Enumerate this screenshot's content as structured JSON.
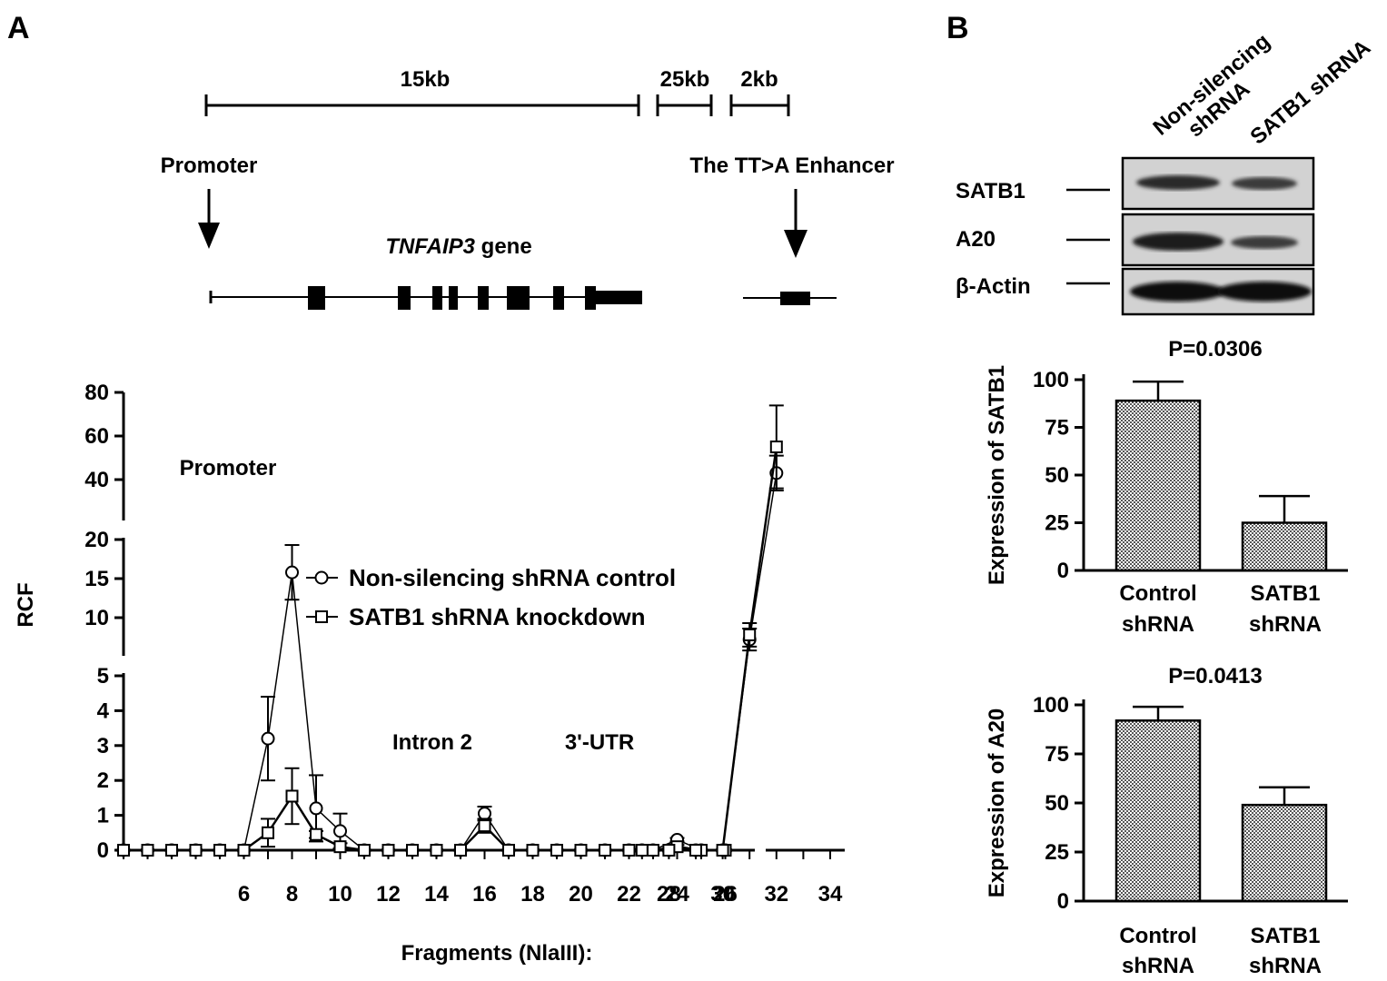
{
  "panel_a": {
    "label": "A",
    "scale_labels": [
      "15kb",
      "25kb",
      "2kb"
    ],
    "promoter_label": "Promoter",
    "enhancer_label": "The TT>A Enhancer",
    "gene_italic": "TNFAIP3",
    "gene_suffix": " gene"
  },
  "panel_b": {
    "label": "B",
    "lane_labels": [
      [
        "Non-silencing",
        "shRNA"
      ],
      [
        "SATB1 shRNA"
      ]
    ],
    "bands": [
      "SATB1",
      "A20",
      "β-Actin"
    ]
  },
  "chart_data": [
    {
      "type": "line",
      "xlabel": "Fragments (NlaIII):",
      "ylabel": "RCF",
      "x_ticks": [
        6,
        8,
        10,
        12,
        14,
        16,
        18,
        20,
        22,
        24,
        26,
        28,
        30,
        32,
        34
      ],
      "y_ticks_bottom": [
        0,
        1,
        2,
        3,
        4,
        5
      ],
      "y_ticks_middle": [
        10,
        15,
        20
      ],
      "y_ticks_top": [
        40,
        60,
        80
      ],
      "annotations": [
        "Promoter",
        "Intron 2",
        "3'-UTR"
      ],
      "x": [
        1,
        2,
        3,
        4,
        5,
        6,
        7,
        8,
        9,
        10,
        11,
        12,
        13,
        14,
        15,
        16,
        17,
        18,
        19,
        20,
        21,
        22,
        23,
        24,
        25,
        26,
        27,
        28,
        29,
        30,
        31,
        32
      ],
      "series": [
        {
          "name": "Non-silencing shRNA control",
          "marker": "circle",
          "values": [
            0,
            0,
            0,
            0,
            0,
            0,
            3.2,
            15.8,
            1.2,
            0.55,
            0,
            0,
            0,
            0,
            0,
            1.05,
            0,
            0,
            0,
            0,
            0,
            0,
            0,
            0.3,
            0,
            0,
            0,
            0,
            0,
            0,
            7.2,
            43
          ],
          "errors": [
            0,
            0,
            0,
            0,
            0,
            0,
            1.2,
            3.5,
            0.95,
            0.5,
            0,
            0,
            0,
            0,
            0,
            0.2,
            0,
            0,
            0,
            0,
            0,
            0,
            0,
            0.05,
            0,
            0,
            0,
            0,
            0,
            0,
            1.4,
            8
          ]
        },
        {
          "name": "SATB1 shRNA knockdown",
          "marker": "square",
          "values": [
            0,
            0,
            0,
            0,
            0,
            0,
            0.5,
            1.55,
            0.45,
            0.1,
            0,
            0,
            0,
            0,
            0,
            0.7,
            0,
            0,
            0,
            0,
            0,
            0,
            0,
            0.1,
            0,
            0,
            0,
            0,
            0,
            0,
            7.8,
            55
          ],
          "errors": [
            0,
            0,
            0,
            0,
            0,
            0,
            0.4,
            0.8,
            0.1,
            0.1,
            0,
            0,
            0,
            0,
            0,
            0.2,
            0,
            0,
            0,
            0,
            0,
            0,
            0,
            0.05,
            0,
            0,
            0,
            0,
            0,
            0,
            1.5,
            19
          ]
        }
      ]
    },
    {
      "type": "bar",
      "title": "P=0.0306",
      "ylabel": "Expression of SATB1",
      "categories": [
        [
          "Control",
          "shRNA"
        ],
        [
          "SATB1",
          "shRNA"
        ]
      ],
      "values": [
        89,
        25
      ],
      "errors": [
        10,
        14
      ],
      "ylim": [
        0,
        100
      ],
      "y_ticks": [
        0,
        25,
        50,
        75,
        100
      ]
    },
    {
      "type": "bar",
      "title": "P=0.0413",
      "ylabel": "Expression of A20",
      "categories": [
        [
          "Control",
          "shRNA"
        ],
        [
          "SATB1",
          "shRNA"
        ]
      ],
      "values": [
        92,
        49
      ],
      "errors": [
        7,
        9
      ],
      "ylim": [
        0,
        100
      ],
      "y_ticks": [
        0,
        25,
        50,
        75,
        100
      ]
    }
  ]
}
